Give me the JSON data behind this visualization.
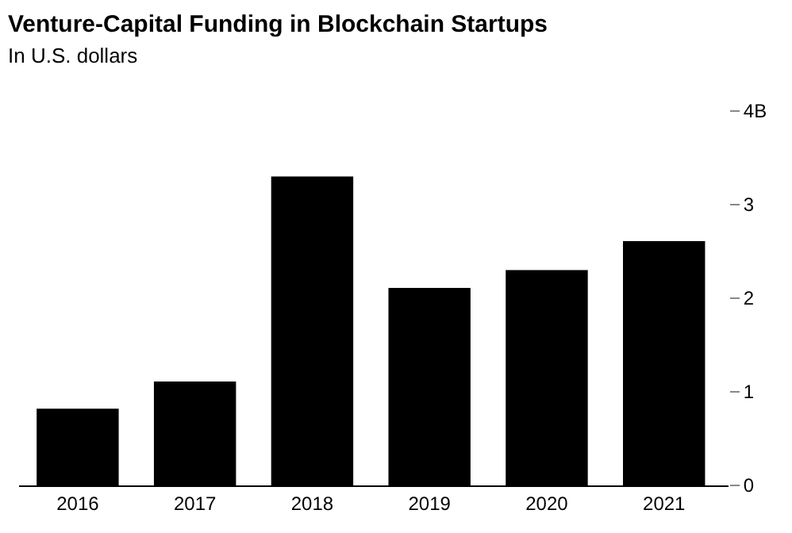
{
  "chart_data": {
    "type": "bar",
    "title": "Venture-Capital Funding in Blockchain Startups",
    "subtitle": "In U.S. dollars",
    "categories": [
      "2016",
      "2017",
      "2018",
      "2019",
      "2020",
      "2021"
    ],
    "values": [
      0.82,
      1.11,
      3.3,
      2.11,
      2.3,
      2.61
    ],
    "color": "#000000",
    "ylim": [
      0,
      4
    ],
    "yticks": [
      0,
      1,
      2,
      3,
      {
        "value": 4,
        "label": "4B"
      }
    ]
  }
}
